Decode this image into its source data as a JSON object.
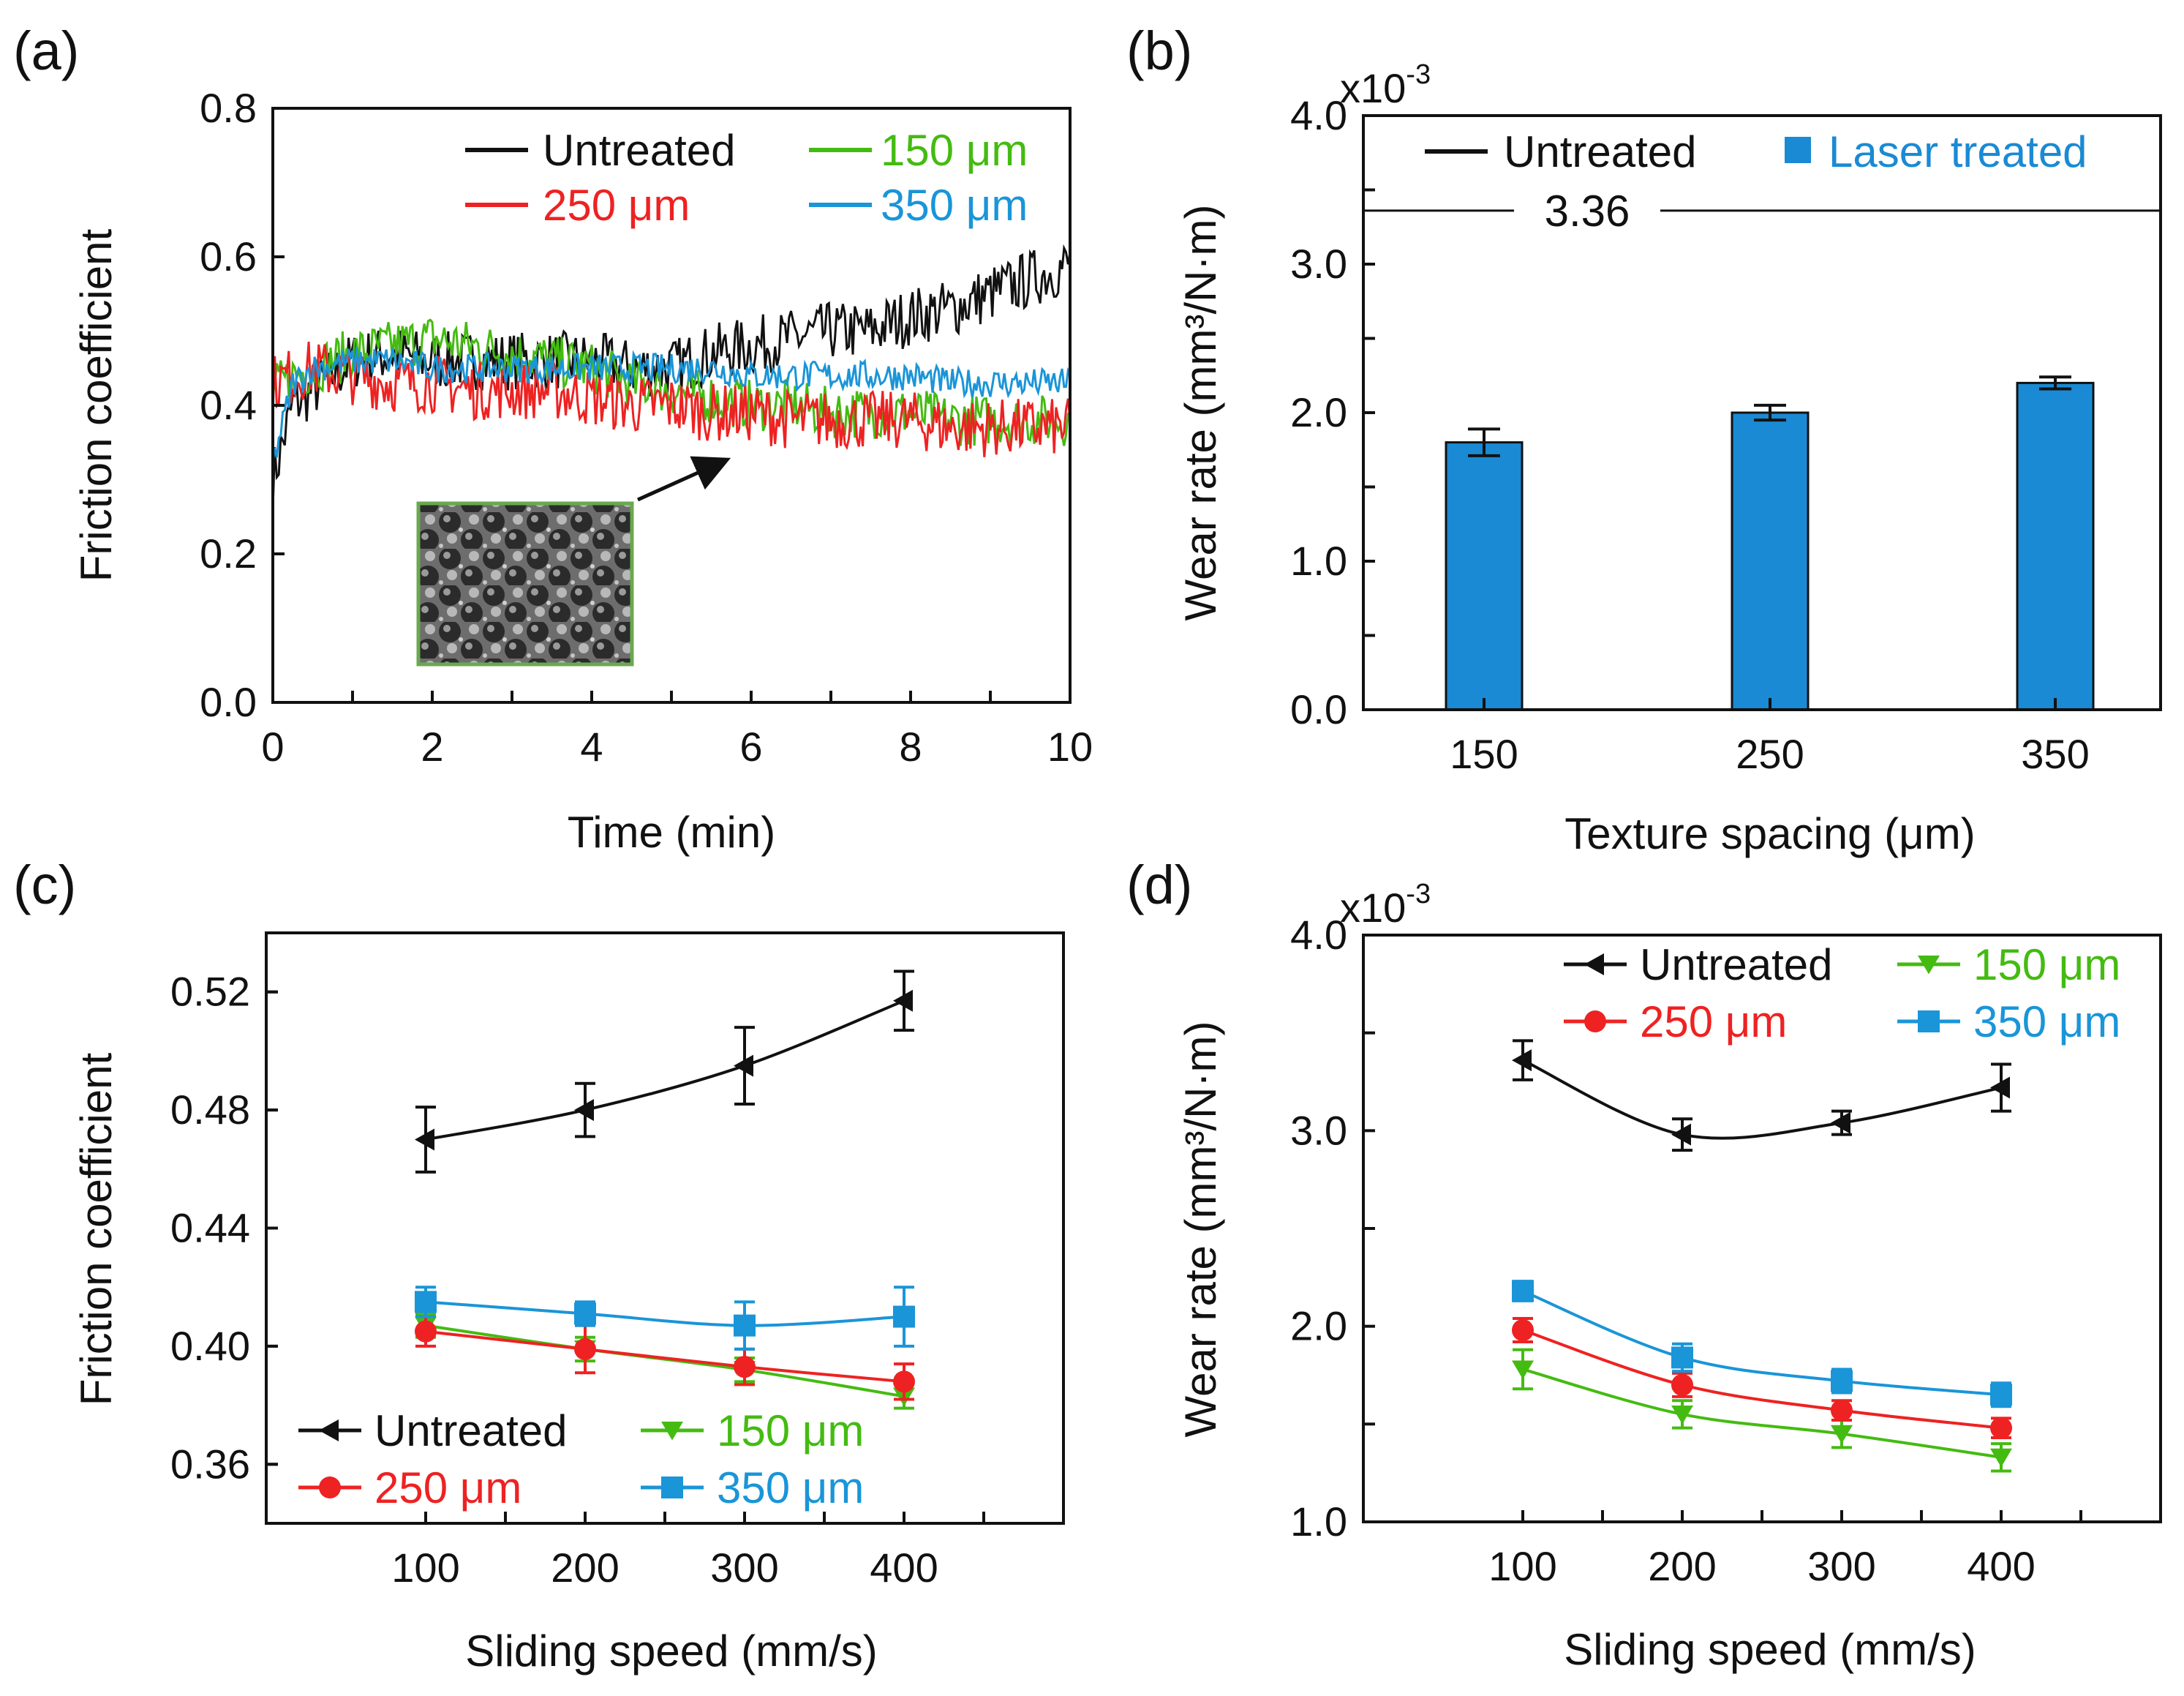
{
  "figure": {
    "panels": [
      "(a)",
      "(b)",
      "(c)",
      "(d)"
    ]
  },
  "colors": {
    "untreated": "#111111",
    "s150": "#44bb11",
    "s250": "#ee2222",
    "s350": "#1a95d8",
    "bar": "#1a8ad4"
  },
  "chart_data": [
    {
      "id": "a",
      "type": "line",
      "panel_label": "(a)",
      "xlabel": "Time (min)",
      "ylabel": "Friction coefficient",
      "xlim": [
        0,
        10
      ],
      "ylim": [
        0,
        0.8
      ],
      "xticks": [
        "0",
        "2",
        "4",
        "6",
        "8",
        "10"
      ],
      "yticks": [
        "0.0",
        "0.2",
        "0.4",
        "0.6",
        "0.8"
      ],
      "x": [
        0,
        0.25,
        0.5,
        1,
        1.5,
        2,
        2.5,
        3,
        3.5,
        4,
        4.5,
        5,
        5.5,
        6,
        6.5,
        7,
        7.5,
        8,
        8.5,
        9,
        9.5,
        10
      ],
      "series": [
        {
          "name": "Untreated",
          "color": "#111111",
          "values": [
            0.3,
            0.4,
            0.42,
            0.46,
            0.47,
            0.46,
            0.46,
            0.46,
            0.46,
            0.46,
            0.45,
            0.45,
            0.47,
            0.48,
            0.49,
            0.5,
            0.5,
            0.52,
            0.53,
            0.55,
            0.57,
            0.59
          ]
        },
        {
          "name": "150 μm",
          "color": "#44bb11",
          "values": [
            0.42,
            0.44,
            0.45,
            0.47,
            0.48,
            0.49,
            0.48,
            0.47,
            0.46,
            0.45,
            0.43,
            0.42,
            0.41,
            0.4,
            0.4,
            0.39,
            0.39,
            0.39,
            0.38,
            0.38,
            0.38,
            0.38
          ]
        },
        {
          "name": "250 μm",
          "color": "#ee2222",
          "values": [
            0.43,
            0.44,
            0.45,
            0.44,
            0.43,
            0.43,
            0.42,
            0.42,
            0.42,
            0.41,
            0.4,
            0.4,
            0.39,
            0.39,
            0.38,
            0.38,
            0.38,
            0.38,
            0.37,
            0.37,
            0.37,
            0.37
          ]
        },
        {
          "name": "350 μm",
          "color": "#1a95d8",
          "values": [
            0.32,
            0.43,
            0.45,
            0.46,
            0.46,
            0.45,
            0.45,
            0.45,
            0.45,
            0.45,
            0.45,
            0.45,
            0.45,
            0.44,
            0.44,
            0.44,
            0.44,
            0.44,
            0.43,
            0.43,
            0.43,
            0.43
          ]
        }
      ],
      "noise": [
        0.04,
        0.035,
        0.04,
        0.02
      ],
      "legend": [
        "Untreated",
        "150 μm",
        "250 μm",
        "350 μm"
      ],
      "inset": "SEM micrograph of laser-textured surface"
    },
    {
      "id": "b",
      "type": "bar",
      "panel_label": "(b)",
      "xlabel": "Texture spacing (μm)",
      "ylabel": "Wear rate (mm³/N·m)",
      "multiplier": "x10",
      "multiplier_exp": "-3",
      "categories": [
        "150",
        "250",
        "350"
      ],
      "values": [
        1.8,
        2.0,
        2.2
      ],
      "errors": [
        0.09,
        0.05,
        0.04
      ],
      "ylim": [
        0,
        4.0
      ],
      "yticks": [
        "0.0",
        "1.0",
        "2.0",
        "3.0",
        "4.0"
      ],
      "reference_line": {
        "label": "Untreated",
        "value": 3.36,
        "text": "3.36"
      },
      "legend": [
        "Untreated",
        "Laser treated"
      ]
    },
    {
      "id": "c",
      "type": "line",
      "panel_label": "(c)",
      "xlabel": "Sliding speed (mm/s)",
      "ylabel": "Friction coefficient",
      "x": [
        100,
        200,
        300,
        400
      ],
      "xlim": [
        0,
        500
      ],
      "xticks": [
        "100",
        "200",
        "300",
        "400"
      ],
      "ylim": [
        0.34,
        0.54
      ],
      "yticks": [
        "0.36",
        "0.40",
        "0.44",
        "0.48",
        "0.52"
      ],
      "series": [
        {
          "name": "Untreated",
          "color": "#111111",
          "marker": "triangle-left",
          "values": [
            0.47,
            0.48,
            0.495,
            0.517
          ],
          "errors": [
            0.011,
            0.009,
            0.013,
            0.01
          ]
        },
        {
          "name": "150 μm",
          "color": "#44bb11",
          "marker": "triangle-down",
          "values": [
            0.407,
            0.399,
            0.392,
            0.383
          ],
          "errors": [
            0.004,
            0.004,
            0.004,
            0.004
          ]
        },
        {
          "name": "250 μm",
          "color": "#ee2222",
          "marker": "circle",
          "values": [
            0.405,
            0.399,
            0.393,
            0.388
          ],
          "errors": [
            0.005,
            0.008,
            0.006,
            0.006
          ]
        },
        {
          "name": "350 μm",
          "color": "#1a95d8",
          "marker": "square",
          "values": [
            0.415,
            0.411,
            0.407,
            0.41
          ],
          "errors": [
            0.005,
            0.004,
            0.008,
            0.01
          ]
        }
      ],
      "legend": [
        "Untreated",
        "150 μm",
        "250 μm",
        "350 μm"
      ]
    },
    {
      "id": "d",
      "type": "line",
      "panel_label": "(d)",
      "xlabel": "Sliding speed (mm/s)",
      "ylabel": "Wear rate (mm³/N·m)",
      "multiplier": "x10",
      "multiplier_exp": "-3",
      "x": [
        100,
        200,
        300,
        400
      ],
      "xlim": [
        0,
        500
      ],
      "xticks": [
        "100",
        "200",
        "300",
        "400"
      ],
      "ylim": [
        1.0,
        4.0
      ],
      "yticks": [
        "1.0",
        "2.0",
        "3.0",
        "4.0"
      ],
      "series": [
        {
          "name": "Untreated",
          "color": "#111111",
          "marker": "triangle-left",
          "values": [
            3.36,
            2.98,
            3.04,
            3.22
          ],
          "errors": [
            0.1,
            0.08,
            0.06,
            0.12
          ]
        },
        {
          "name": "150 μm",
          "color": "#44bb11",
          "marker": "triangle-down",
          "values": [
            1.78,
            1.55,
            1.45,
            1.33
          ],
          "errors": [
            0.1,
            0.07,
            0.07,
            0.07
          ]
        },
        {
          "name": "250 μm",
          "color": "#ee2222",
          "marker": "circle",
          "values": [
            1.98,
            1.7,
            1.57,
            1.48
          ],
          "errors": [
            0.06,
            0.06,
            0.05,
            0.05
          ]
        },
        {
          "name": "350 μm",
          "color": "#1a95d8",
          "marker": "square",
          "values": [
            2.18,
            1.84,
            1.72,
            1.65
          ],
          "errors": [
            0.05,
            0.07,
            0.06,
            0.06
          ]
        }
      ],
      "legend": [
        "Untreated",
        "150 μm",
        "250 μm",
        "350 μm"
      ]
    }
  ]
}
